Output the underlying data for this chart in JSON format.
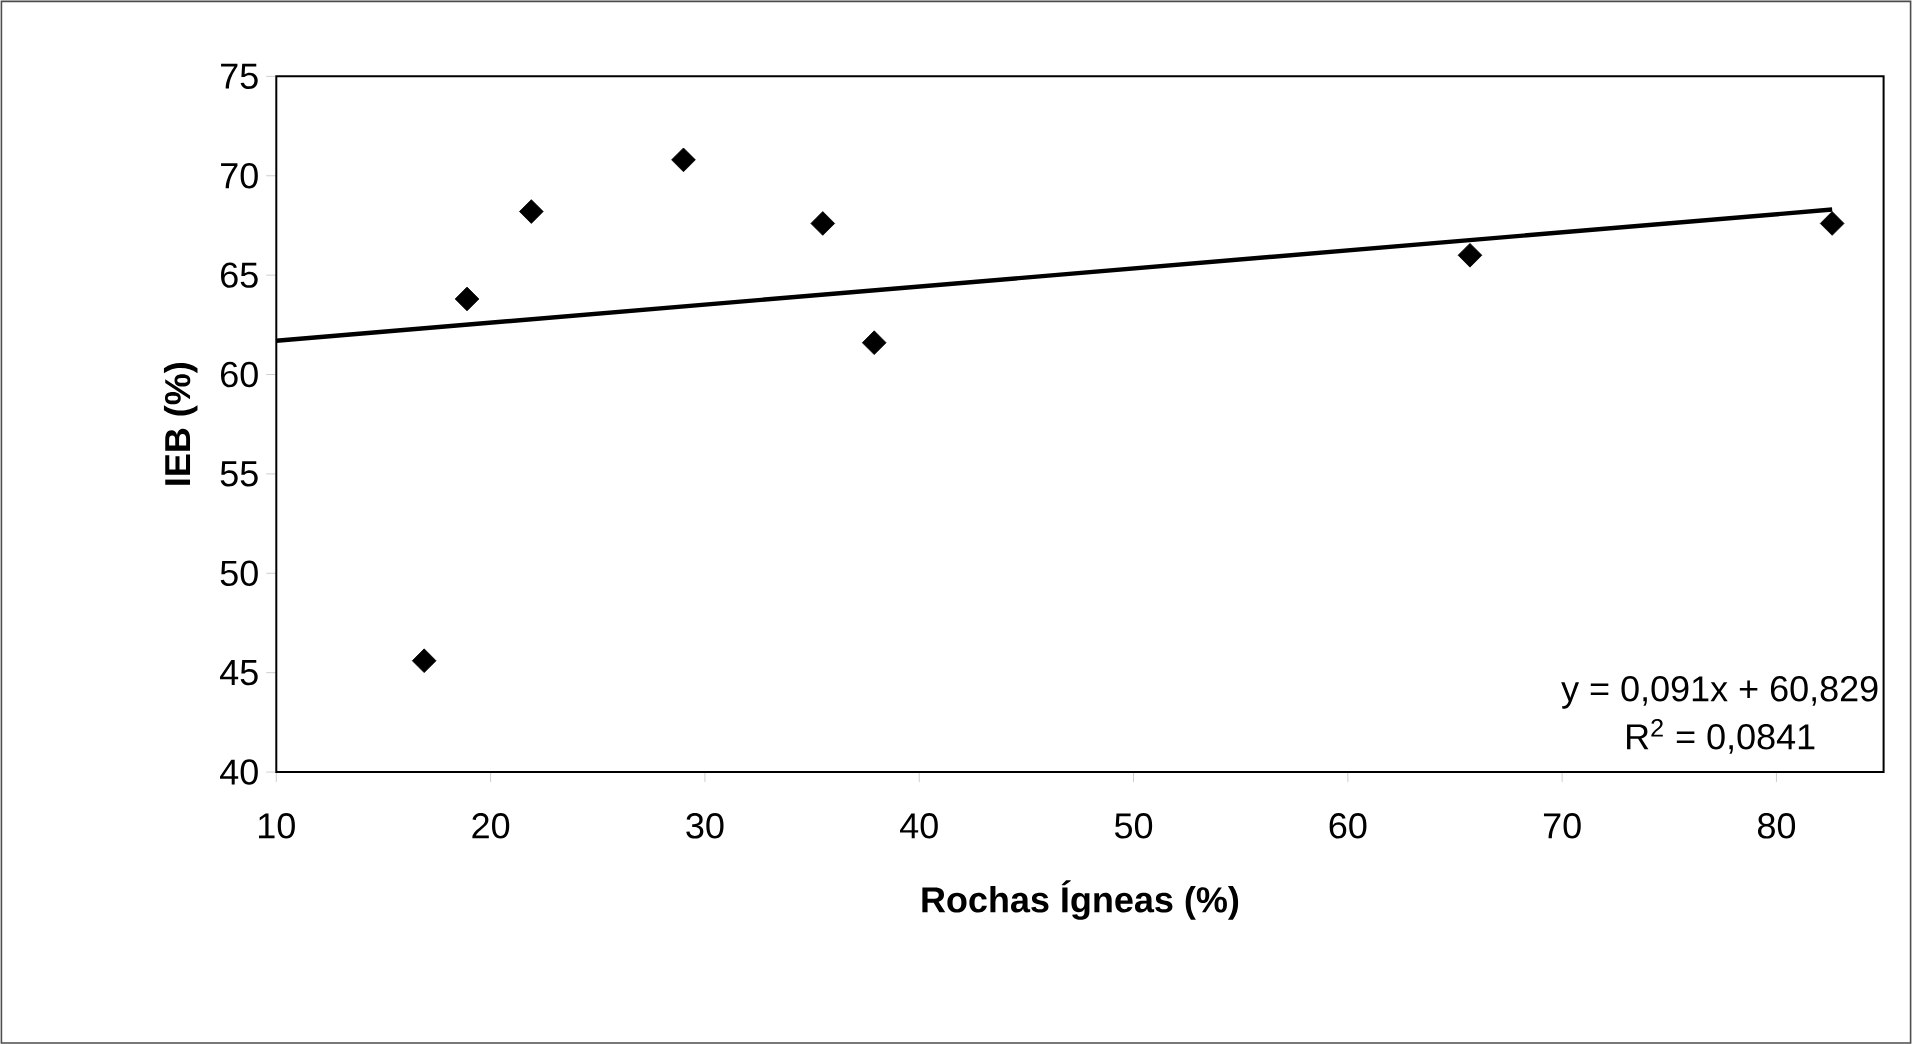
{
  "chart_data": {
    "type": "scatter",
    "xlabel": "Rochas Ígneas (%)",
    "ylabel": "IEB (%)",
    "marker": "diamond",
    "xlim": [
      10,
      85
    ],
    "xticks": [
      10,
      20,
      30,
      40,
      50,
      60,
      70,
      80
    ],
    "ylim": [
      40,
      75
    ],
    "yticks": [
      40,
      45,
      50,
      55,
      60,
      65,
      70,
      75
    ],
    "series": [
      {
        "color": "#000000",
        "x": [
          16.9,
          18.9,
          21.9,
          29.0,
          35.5,
          37.9,
          65.7,
          82.6
        ],
        "values": [
          45.6,
          63.8,
          68.2,
          70.8,
          67.6,
          61.6,
          66.0,
          67.6
        ]
      },
      {
        "type": "line",
        "color": "#000000",
        "marker": "none",
        "line_style": "solid",
        "x": [
          10,
          82.6
        ],
        "values": [
          61.7,
          68.3
        ]
      }
    ],
    "annotations": [
      "y = 0,091x + 60,829",
      "R$^{2}$ = 0,0841"
    ]
  }
}
